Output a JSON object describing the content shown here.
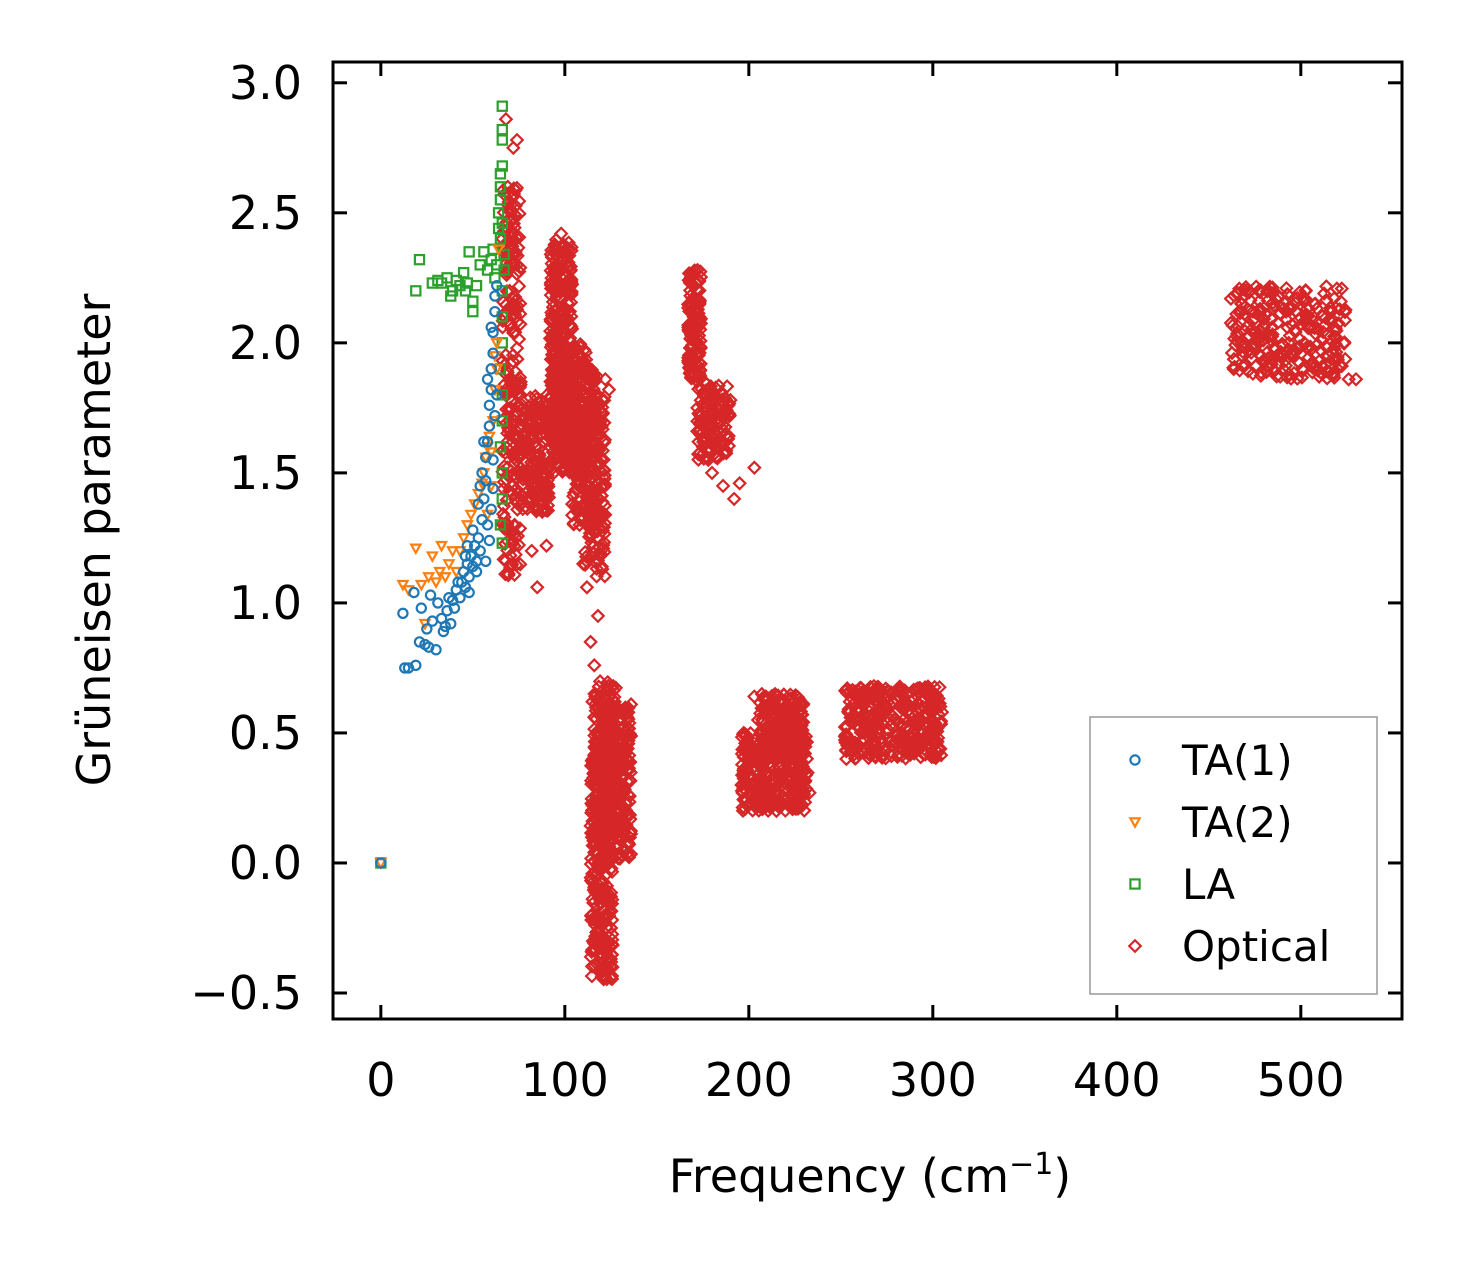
{
  "chart_data": {
    "type": "scatter",
    "title": "",
    "xlabel": "Frequency (cm",
    "xlabel_sup": "−1",
    "xlabel_close": ")",
    "ylabel": "Grüneisen parameter",
    "xlim": [
      -26,
      555
    ],
    "ylim": [
      -0.6,
      3.08
    ],
    "xticks": [
      0,
      100,
      200,
      300,
      400,
      500
    ],
    "xtick_labels": [
      "0",
      "100",
      "200",
      "300",
      "400",
      "500"
    ],
    "yticks": [
      -0.5,
      0.0,
      0.5,
      1.0,
      1.5,
      2.0,
      2.5,
      3.0
    ],
    "ytick_labels": [
      "−0.5",
      "0.0",
      "0.5",
      "1.0",
      "1.5",
      "2.0",
      "2.5",
      "3.0"
    ],
    "legend_position": "lower-right",
    "series": [
      {
        "name": "TA(1)",
        "marker": "circle",
        "color": "#1f77b4",
        "points": [
          [
            0,
            0.0
          ],
          [
            12,
            0.96
          ],
          [
            13,
            0.75
          ],
          [
            15,
            0.75
          ],
          [
            18,
            1.04
          ],
          [
            19,
            0.76
          ],
          [
            21,
            0.85
          ],
          [
            22,
            0.98
          ],
          [
            24,
            0.84
          ],
          [
            26,
            0.83
          ],
          [
            27,
            1.03
          ],
          [
            28,
            0.93
          ],
          [
            30,
            0.82
          ],
          [
            31,
            1.0
          ],
          [
            33,
            0.94
          ],
          [
            34,
            0.89
          ],
          [
            36,
            0.97
          ],
          [
            37,
            1.02
          ],
          [
            38,
            0.92
          ],
          [
            40,
            0.98
          ],
          [
            41,
            1.05
          ],
          [
            43,
            1.02
          ],
          [
            44,
            1.08
          ],
          [
            45,
            1.12
          ],
          [
            46,
            1.06
          ],
          [
            47,
            1.15
          ],
          [
            48,
            1.1
          ],
          [
            49,
            1.18
          ],
          [
            50,
            1.14
          ],
          [
            51,
            1.22
          ],
          [
            52,
            1.16
          ],
          [
            53,
            1.25
          ],
          [
            54,
            1.2
          ],
          [
            55,
            1.32
          ],
          [
            56,
            1.4
          ],
          [
            57,
            1.47
          ],
          [
            57,
            1.56
          ],
          [
            58,
            1.62
          ],
          [
            59,
            1.68
          ],
          [
            59,
            1.76
          ],
          [
            60,
            1.82
          ],
          [
            60,
            1.9
          ],
          [
            61,
            1.96
          ],
          [
            61,
            2.04
          ],
          [
            62,
            2.12
          ],
          [
            62,
            2.18
          ],
          [
            63,
            2.22
          ],
          [
            58,
            1.3
          ],
          [
            59,
            1.24
          ],
          [
            60,
            1.36
          ],
          [
            61,
            1.55
          ],
          [
            62,
            1.72
          ],
          [
            50,
            1.28
          ],
          [
            53,
            1.38
          ],
          [
            55,
            1.5
          ],
          [
            56,
            1.62
          ],
          [
            58,
            1.86
          ],
          [
            60,
            2.06
          ],
          [
            47,
            1.22
          ],
          [
            52,
            1.12
          ],
          [
            57,
            1.16
          ],
          [
            54,
            1.45
          ],
          [
            61,
            1.44
          ],
          [
            63,
            1.8
          ],
          [
            48,
            1.04
          ],
          [
            46,
            1.18
          ],
          [
            42,
            1.08
          ],
          [
            39,
            1.01
          ],
          [
            35,
            0.91
          ],
          [
            25,
            0.9
          ]
        ]
      },
      {
        "name": "TA(2)",
        "marker": "triangle-down",
        "color": "#ff7f0e",
        "points": [
          [
            0,
            0.0
          ],
          [
            12,
            1.07
          ],
          [
            15,
            1.05
          ],
          [
            19,
            1.21
          ],
          [
            22,
            1.07
          ],
          [
            24,
            0.92
          ],
          [
            26,
            1.1
          ],
          [
            28,
            1.18
          ],
          [
            30,
            1.08
          ],
          [
            32,
            1.12
          ],
          [
            33,
            1.22
          ],
          [
            35,
            1.1
          ],
          [
            37,
            1.15
          ],
          [
            39,
            1.2
          ],
          [
            41,
            1.12
          ],
          [
            43,
            1.2
          ],
          [
            45,
            1.25
          ],
          [
            47,
            1.3
          ],
          [
            49,
            1.34
          ],
          [
            51,
            1.38
          ],
          [
            53,
            1.42
          ],
          [
            55,
            1.46
          ],
          [
            56,
            1.5
          ],
          [
            57,
            1.56
          ],
          [
            58,
            1.6
          ],
          [
            59,
            1.64
          ],
          [
            60,
            1.58
          ],
          [
            61,
            1.7
          ],
          [
            62,
            1.95
          ],
          [
            63,
            2.0
          ],
          [
            64,
            2.36
          ],
          [
            58,
            1.34
          ],
          [
            60,
            1.45
          ],
          [
            62,
            1.82
          ],
          [
            63,
            1.9
          ]
        ]
      },
      {
        "name": "LA",
        "marker": "square",
        "color": "#2ca02c",
        "points": [
          [
            0,
            0.0
          ],
          [
            19,
            2.2
          ],
          [
            21,
            2.32
          ],
          [
            28,
            2.23
          ],
          [
            31,
            2.24
          ],
          [
            33,
            2.23
          ],
          [
            36,
            2.25
          ],
          [
            38,
            2.18
          ],
          [
            39,
            2.2
          ],
          [
            41,
            2.24
          ],
          [
            43,
            2.22
          ],
          [
            45,
            2.27
          ],
          [
            46,
            2.2
          ],
          [
            47,
            2.23
          ],
          [
            48,
            2.35
          ],
          [
            50,
            2.12
          ],
          [
            50,
            2.16
          ],
          [
            52,
            2.22
          ],
          [
            54,
            2.3
          ],
          [
            56,
            2.35
          ],
          [
            58,
            2.28
          ],
          [
            60,
            2.32
          ],
          [
            61,
            2.36
          ],
          [
            62,
            2.25
          ],
          [
            63,
            2.3
          ],
          [
            64,
            2.5
          ],
          [
            65,
            2.55
          ],
          [
            65,
            2.6
          ],
          [
            65,
            2.65
          ],
          [
            66,
            2.68
          ],
          [
            66,
            2.78
          ],
          [
            66,
            2.82
          ],
          [
            66,
            2.91
          ],
          [
            64,
            2.44
          ],
          [
            65,
            2.4
          ],
          [
            66,
            2.46
          ],
          [
            67,
            2.34
          ],
          [
            67,
            2.28
          ],
          [
            66,
            2.2
          ],
          [
            66,
            2.1
          ],
          [
            66,
            2.0
          ],
          [
            65,
            1.9
          ],
          [
            66,
            1.8
          ],
          [
            66,
            1.7
          ],
          [
            65,
            1.6
          ],
          [
            66,
            1.5
          ],
          [
            66,
            1.4
          ],
          [
            65,
            1.3
          ],
          [
            66,
            1.23
          ]
        ]
      },
      {
        "name": "Optical",
        "marker": "diamond",
        "color": "#d62728",
        "points": [
          [
            66,
            2.4
          ],
          [
            67,
            2.1
          ],
          [
            68,
            2.86
          ],
          [
            69,
            2.6
          ],
          [
            70,
            2.2
          ],
          [
            72,
            2.3
          ],
          [
            72,
            2.75
          ],
          [
            74,
            2.78
          ],
          [
            76,
            1.85
          ],
          [
            78,
            1.6
          ],
          [
            80,
            1.4
          ],
          [
            82,
            1.2
          ],
          [
            85,
            1.06
          ],
          [
            90,
            1.22
          ],
          [
            92,
            1.6
          ],
          [
            94,
            2.1
          ],
          [
            96,
            2.3
          ],
          [
            98,
            2.42
          ],
          [
            100,
            2.2
          ],
          [
            102,
            1.9
          ],
          [
            104,
            1.7
          ],
          [
            106,
            1.5
          ],
          [
            108,
            1.3
          ],
          [
            110,
            1.15
          ],
          [
            112,
            1.06
          ],
          [
            114,
            0.85
          ],
          [
            116,
            0.76
          ],
          [
            118,
            0.95
          ],
          [
            120,
            1.68
          ],
          [
            122,
            1.86
          ],
          [
            124,
            1.82
          ],
          [
            126,
            0.6
          ],
          [
            128,
            0.42
          ],
          [
            130,
            0.25
          ],
          [
            132,
            0.52
          ],
          [
            134,
            0.4
          ],
          [
            136,
            0.61
          ],
          [
            120,
            -0.42
          ],
          [
            118,
            -0.3
          ],
          [
            117,
            0.2
          ],
          [
            116,
            0.1
          ],
          [
            115,
            0.62
          ],
          [
            118,
            0.5
          ],
          [
            121,
            -0.1
          ],
          [
            123,
            0.3
          ],
          [
            169,
            2.26
          ],
          [
            170,
            2.1
          ],
          [
            168,
            1.98
          ],
          [
            172,
            1.75
          ],
          [
            175,
            1.6
          ],
          [
            178,
            1.55
          ],
          [
            182,
            1.62
          ],
          [
            186,
            1.45
          ],
          [
            190,
            1.78
          ],
          [
            192,
            1.4
          ],
          [
            195,
            1.46
          ],
          [
            203,
            1.52
          ],
          [
            172,
            1.66
          ],
          [
            180,
            1.5
          ],
          [
            196,
            0.3
          ],
          [
            198,
            0.25
          ],
          [
            200,
            0.4
          ],
          [
            203,
            0.64
          ],
          [
            205,
            0.55
          ],
          [
            210,
            0.3
          ],
          [
            215,
            0.2
          ],
          [
            220,
            0.35
          ],
          [
            224,
            0.5
          ],
          [
            226,
            0.64
          ],
          [
            230,
            0.48
          ],
          [
            233,
            0.27
          ],
          [
            208,
            0.22
          ],
          [
            218,
            0.42
          ],
          [
            253,
            0.4
          ],
          [
            256,
            0.45
          ],
          [
            260,
            0.55
          ],
          [
            265,
            0.65
          ],
          [
            268,
            0.68
          ],
          [
            272,
            0.6
          ],
          [
            278,
            0.62
          ],
          [
            285,
            0.6
          ],
          [
            292,
            0.58
          ],
          [
            300,
            0.6
          ],
          [
            305,
            0.58
          ],
          [
            263,
            0.5
          ],
          [
            270,
            0.58
          ],
          [
            462,
            2.17
          ],
          [
            468,
            2.15
          ],
          [
            474,
            2.12
          ],
          [
            480,
            2.06
          ],
          [
            484,
            2.21
          ],
          [
            488,
            2.18
          ],
          [
            492,
            2.12
          ],
          [
            497,
            2.05
          ],
          [
            502,
            2.0
          ],
          [
            506,
            1.92
          ],
          [
            510,
            1.87
          ],
          [
            515,
            1.95
          ],
          [
            520,
            1.9
          ],
          [
            526,
            1.86
          ],
          [
            530,
            1.86
          ],
          [
            510,
            1.93
          ],
          [
            500,
            2.07
          ],
          [
            478,
            2.12
          ]
        ],
        "clusters": [
          {
            "x": [
              66,
              76
            ],
            "y": [
              1.1,
              2.6
            ],
            "n": 240
          },
          {
            "x": [
              76,
              92
            ],
            "y": [
              1.35,
              1.8
            ],
            "n": 180
          },
          {
            "x": [
              92,
              104
            ],
            "y": [
              1.6,
              2.4
            ],
            "n": 300
          },
          {
            "x": [
              92,
              112
            ],
            "y": [
              1.5,
              2.0
            ],
            "n": 220
          },
          {
            "x": [
              104,
              118
            ],
            "y": [
              1.3,
              1.9
            ],
            "n": 200
          },
          {
            "x": [
              110,
              122
            ],
            "y": [
              1.1,
              1.8
            ],
            "n": 150
          },
          {
            "x": [
              114,
              126
            ],
            "y": [
              -0.45,
              0.45
            ],
            "n": 320
          },
          {
            "x": [
              120,
              136
            ],
            "y": [
              0.0,
              0.6
            ],
            "n": 260
          },
          {
            "x": [
              116,
              128
            ],
            "y": [
              0.3,
              0.7
            ],
            "n": 140
          },
          {
            "x": [
              167,
              174
            ],
            "y": [
              1.85,
              2.28
            ],
            "n": 130
          },
          {
            "x": [
              172,
              190
            ],
            "y": [
              1.55,
              1.85
            ],
            "n": 120
          },
          {
            "x": [
              196,
              232
            ],
            "y": [
              0.2,
              0.5
            ],
            "n": 340
          },
          {
            "x": [
              206,
              230
            ],
            "y": [
              0.45,
              0.65
            ],
            "n": 160
          },
          {
            "x": [
              252,
              305
            ],
            "y": [
              0.4,
              0.68
            ],
            "n": 340
          },
          {
            "x": [
              462,
              525
            ],
            "y": [
              1.86,
              2.22
            ],
            "n": 260
          }
        ]
      }
    ]
  }
}
